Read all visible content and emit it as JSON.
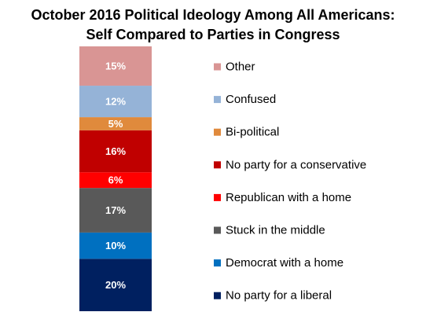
{
  "chart_data": {
    "type": "bar",
    "stacked": true,
    "title": "October 2016 Political Ideology Among All Americans:",
    "subtitle": "Self Compared to Parties in Congress",
    "categories": [
      ""
    ],
    "series": [
      {
        "name": "No party for a liberal",
        "values": [
          20
        ],
        "label": "20%",
        "color": "#002060",
        "label_color": "#ffffff"
      },
      {
        "name": "Democrat with a home",
        "values": [
          10
        ],
        "label": "10%",
        "color": "#0070c0",
        "label_color": "#ffffff"
      },
      {
        "name": "Stuck in the middle",
        "values": [
          17
        ],
        "label": "17%",
        "color": "#595959",
        "label_color": "#ffffff"
      },
      {
        "name": "Republican with a home",
        "values": [
          6
        ],
        "label": "6%",
        "color": "#ff0000",
        "label_color": "#ffffff"
      },
      {
        "name": "No party for a conservative",
        "values": [
          16
        ],
        "label": "16%",
        "color": "#c00000",
        "label_color": "#ffffff"
      },
      {
        "name": "Bi-political",
        "values": [
          5
        ],
        "label": "5%",
        "color": "#e08a3c",
        "label_color": "#ffffff"
      },
      {
        "name": "Confused",
        "values": [
          12
        ],
        "label": "12%",
        "color": "#95b3d7",
        "label_color": "#ffffff"
      },
      {
        "name": "Other",
        "values": [
          15
        ],
        "label": "15%",
        "color": "#d99594",
        "label_color": "#ffffff"
      }
    ],
    "ylim": [
      0,
      101
    ],
    "legend": "right",
    "grid": false
  }
}
